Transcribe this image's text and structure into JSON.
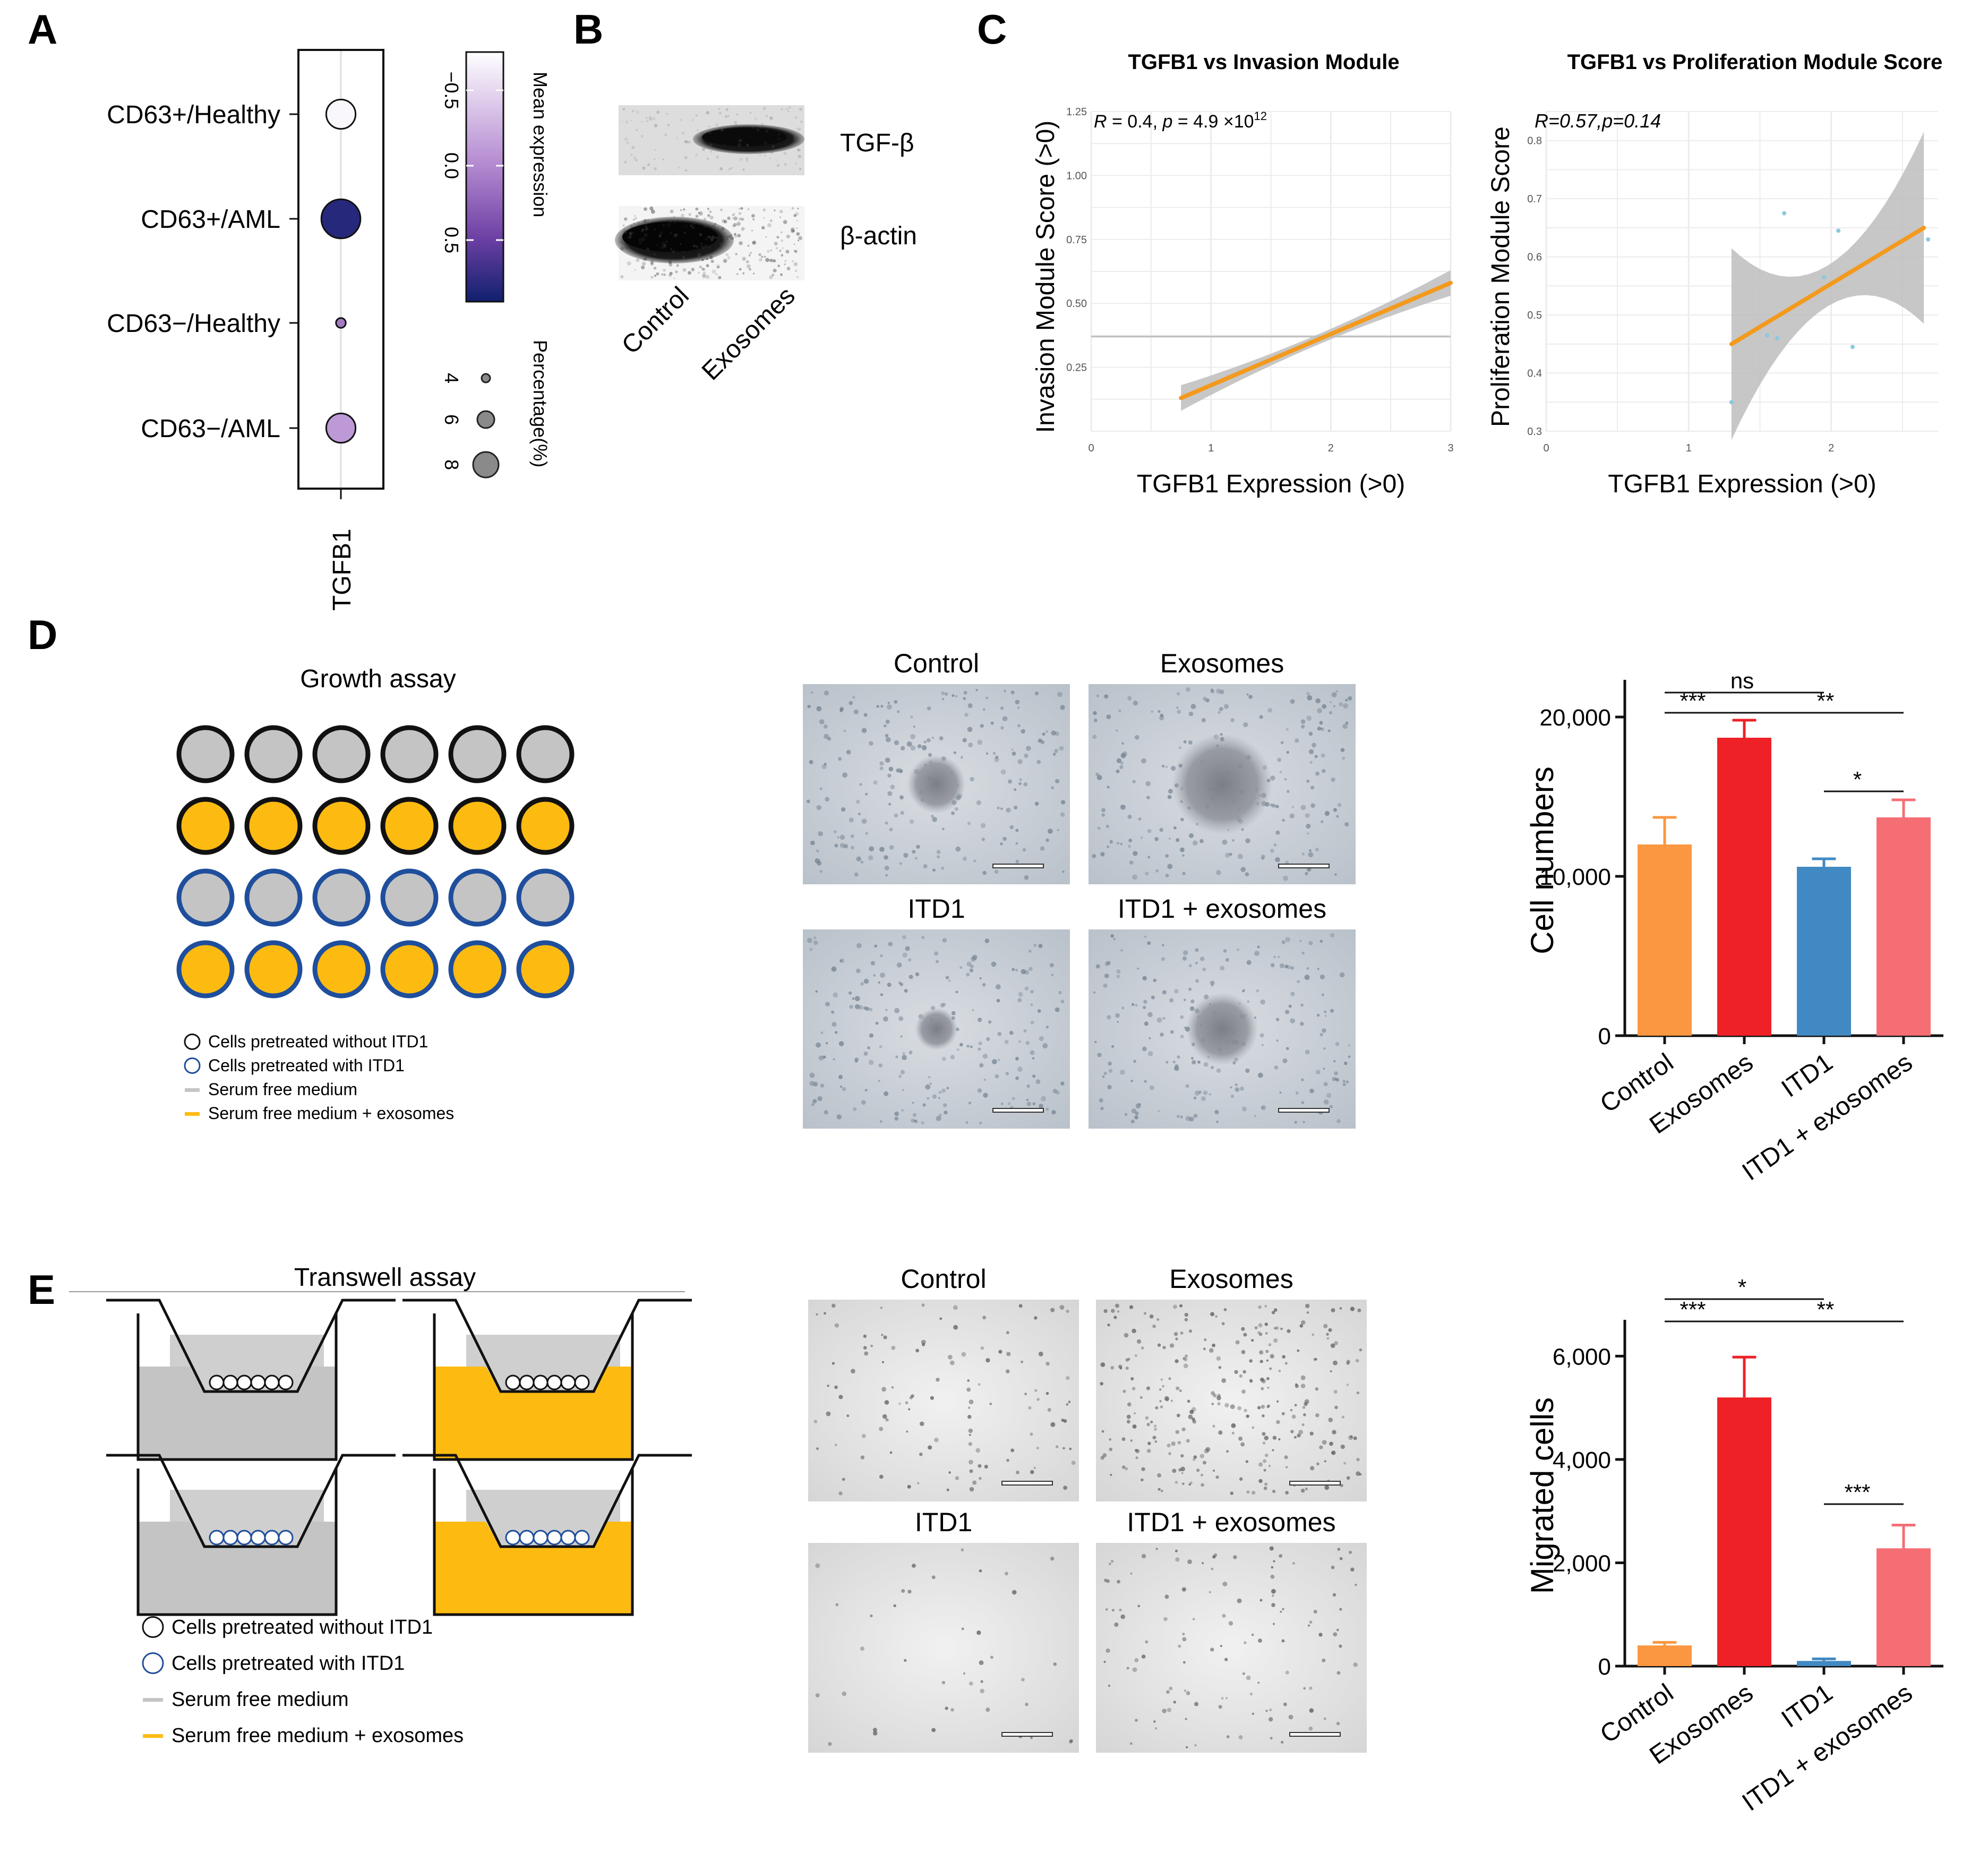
{
  "panels": {
    "a": "A",
    "b": "B",
    "c": "C",
    "d": "D",
    "e": "E"
  },
  "panel_a": {
    "gene": "TGFB1",
    "groups": [
      "CD63+/Healthy",
      "CD63+/AML",
      "CD63−/Healthy",
      "CD63−/AML"
    ],
    "mean_expression": [
      -0.8,
      0.7,
      0.0,
      -0.2
    ],
    "percentage": [
      6,
      8,
      2,
      6
    ],
    "colorbar_title": "Mean expression",
    "colorbar_ticks": [
      "−0.5",
      "0.0",
      "0.5"
    ],
    "size_title": "Percentage(%)",
    "size_ticks": [
      "4",
      "6",
      "8"
    ]
  },
  "panel_b": {
    "bands": [
      "TGF-β",
      "β-actin"
    ],
    "lanes": [
      "Control",
      "Exosomes"
    ]
  },
  "chart_data": [
    {
      "id": "C-left",
      "type": "scatter",
      "title": "TGFB1 vs Invasion Module",
      "xlabel": "TGFB1 Expression (>0)",
      "ylabel": "Invasion Module Score (>0)",
      "annotation": {
        "r": "R",
        "r_val": "= 0.4, ",
        "p": "p",
        "p_val": "= 4.9 ×10",
        "p_exp": "12"
      },
      "xlim": [
        0,
        3
      ],
      "ylim": [
        0,
        1.25
      ],
      "xticks": [
        "0",
        "1",
        "2",
        "3"
      ],
      "yticks": [
        "0.25",
        "0.50",
        "0.75",
        "1.00",
        "1.25"
      ],
      "hline": 0.37,
      "fit": {
        "x": [
          0.75,
          3.0
        ],
        "y": [
          0.13,
          0.58
        ]
      }
    },
    {
      "id": "C-right",
      "type": "scatter",
      "title": "TGFB1 vs Proliferation Module Score",
      "xlabel": "TGFB1 Expression (>0)",
      "ylabel": "Proliferation Module Score",
      "annotation": {
        "text": "R=0.57,p=0.14"
      },
      "xlim": [
        0,
        2.75
      ],
      "ylim": [
        0.3,
        0.85
      ],
      "xticks": [
        "0",
        "1",
        "2"
      ],
      "yticks": [
        "0.3",
        "0.4",
        "0.5",
        "0.6",
        "0.7",
        "0.8"
      ],
      "points": {
        "x": [
          1.3,
          1.55,
          1.62,
          1.67,
          1.95,
          2.05,
          2.15,
          2.68
        ],
        "y": [
          0.35,
          0.465,
          0.46,
          0.675,
          0.565,
          0.645,
          0.445,
          0.63
        ]
      },
      "fit": {
        "x": [
          1.3,
          2.65
        ],
        "y": [
          0.45,
          0.65
        ]
      }
    },
    {
      "id": "D-bar",
      "type": "bar",
      "title": "",
      "ylabel": "Cell numbers",
      "categories": [
        "Control",
        "Exosomes",
        "ITD1",
        "ITD1 + exosomes"
      ],
      "values": [
        12000,
        18700,
        10600,
        13700
      ],
      "errors": [
        1700,
        1100,
        500,
        1100
      ],
      "colors": [
        "#FB9740",
        "#EE2127",
        "#4189C2",
        "#F46E74"
      ],
      "ylim": [
        0,
        22000
      ],
      "yticks": [
        {
          "v": 0,
          "t": "0"
        },
        {
          "v": 10000,
          "t": "10,000"
        },
        {
          "v": 20000,
          "t": "20,000"
        }
      ],
      "significance": [
        {
          "from": 0,
          "to": 1,
          "label": "***"
        },
        {
          "from": 0,
          "to": 2,
          "label": "ns"
        },
        {
          "from": 1,
          "to": 3,
          "label": "**"
        },
        {
          "from": 2,
          "to": 3,
          "label": "*"
        }
      ]
    },
    {
      "id": "E-bar",
      "type": "bar",
      "title": "",
      "ylabel": "Migrated cells",
      "categories": [
        "Control",
        "Exosomes",
        "ITD1",
        "ITD1 + exosomes"
      ],
      "values": [
        400,
        5200,
        100,
        2280
      ],
      "errors": [
        60,
        780,
        40,
        450
      ],
      "colors": [
        "#FB9740",
        "#EE2127",
        "#4189C2",
        "#F46E74"
      ],
      "ylim": [
        0,
        6600
      ],
      "yticks": [
        {
          "v": 0,
          "t": "0"
        },
        {
          "v": 2000,
          "t": "2,000"
        },
        {
          "v": 4000,
          "t": "4,000"
        },
        {
          "v": 6000,
          "t": "6,000"
        }
      ],
      "significance": [
        {
          "from": 0,
          "to": 1,
          "label": "***"
        },
        {
          "from": 0,
          "to": 2,
          "label": "*"
        },
        {
          "from": 1,
          "to": 3,
          "label": "**"
        },
        {
          "from": 2,
          "to": 3,
          "label": "***"
        }
      ]
    }
  ],
  "panel_d": {
    "title": "Growth assay",
    "micro_labels": [
      "Control",
      "Exosomes",
      "ITD1",
      "ITD1 + exosomes"
    ],
    "legend": [
      "Cells pretreated without ITD1",
      "Cells pretreated with ITD1",
      "Serum free medium",
      "Serum free medium + exosomes"
    ]
  },
  "panel_e": {
    "title": "Transwell assay",
    "micro_labels": [
      "Control",
      "Exosomes",
      "ITD1",
      "ITD1 + exosomes"
    ],
    "legend": [
      "Cells pretreated without ITD1",
      "Cells pretreated with ITD1",
      "Serum free medium",
      "Serum free medium + exosomes"
    ]
  },
  "colors": {
    "gray": "#C4C4C4",
    "yellow": "#FDBB12",
    "blue_ring": "#1F4E9C",
    "orange_fit": "#F39A1E",
    "ci_band": "#BDBDBD",
    "cmap_low": "#FFFFFF",
    "cmap_mid": "#6B3FA3",
    "cmap_high": "#10206E"
  }
}
